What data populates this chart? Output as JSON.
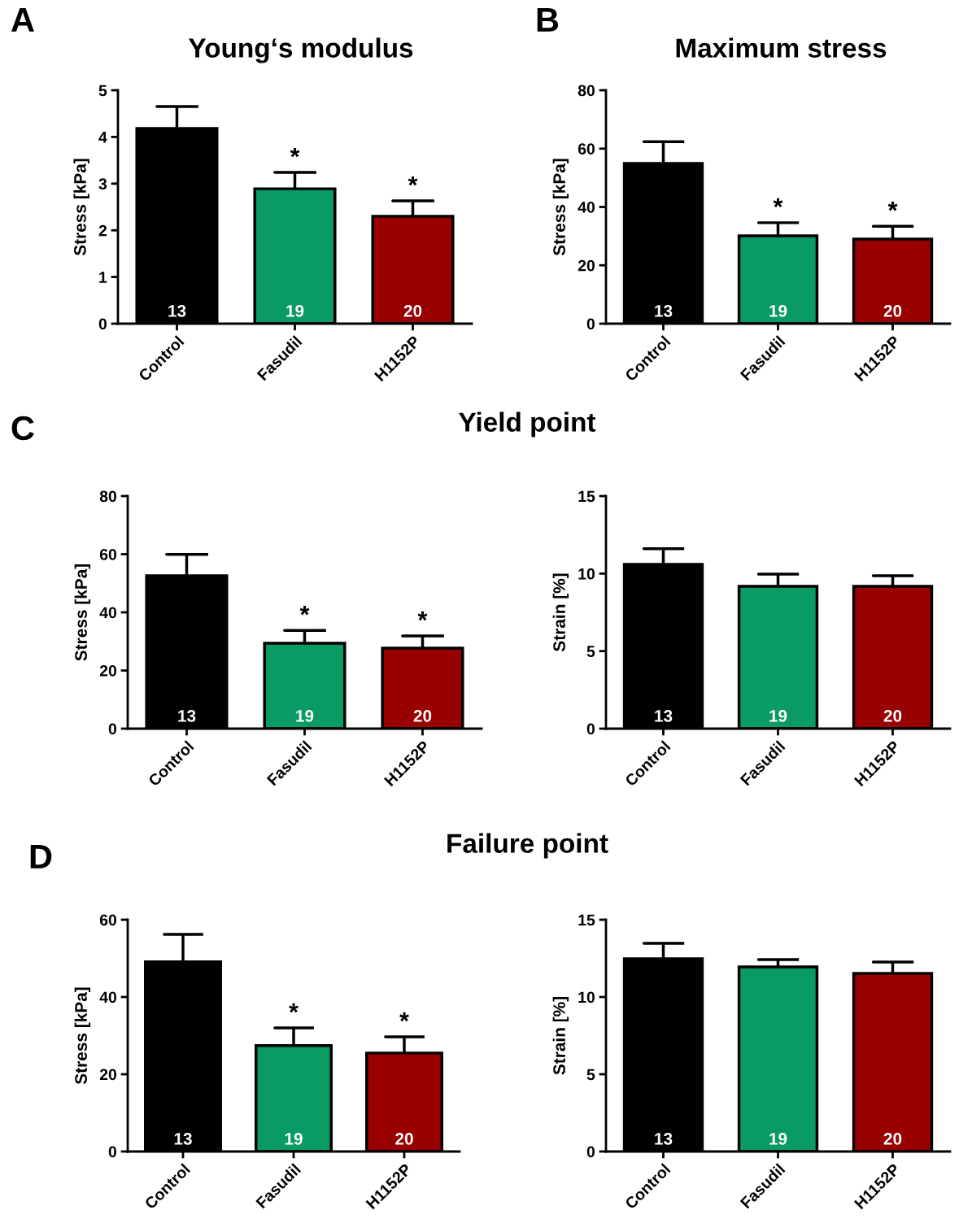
{
  "chart_data": [
    {
      "type": "bar",
      "title": "Young‘s modulus",
      "ylabel": "Stress [kPa]",
      "categories": [
        "Control",
        "Fasudil",
        "H1152P"
      ],
      "values": [
        4.18,
        2.89,
        2.3
      ],
      "errors": [
        0.47,
        0.35,
        0.33
      ],
      "colors": [
        "#000000",
        "#0a9a64",
        "#990000"
      ],
      "ylim": [
        0,
        5
      ],
      "yticks": [
        0,
        1,
        2,
        3,
        4,
        5
      ],
      "grid": false,
      "legend": false,
      "annotations": [
        "A",
        {
          "text": "13",
          "x": "Control",
          "y": 0
        },
        {
          "text": "19",
          "x": "Fasudil",
          "y": 0
        },
        {
          "text": "20",
          "x": "H1152P",
          "y": 0
        },
        {
          "text": "*",
          "x": "Fasudil",
          "y": 3.24
        },
        {
          "text": "*",
          "x": "H1152P",
          "y": 2.63
        }
      ]
    },
    {
      "type": "bar",
      "title": "Maximum stress",
      "ylabel": "Stress [kPa]",
      "categories": [
        "Control",
        "Fasudil",
        "H1152P"
      ],
      "values": [
        54.9,
        30.1,
        29.0
      ],
      "errors": [
        7.5,
        4.5,
        4.4
      ],
      "colors": [
        "#000000",
        "#0a9a64",
        "#990000"
      ],
      "ylim": [
        0,
        80
      ],
      "yticks": [
        0,
        20,
        40,
        60,
        80
      ],
      "grid": false,
      "legend": false,
      "annotations": [
        "B",
        {
          "text": "13",
          "x": "Control",
          "y": 0
        },
        {
          "text": "19",
          "x": "Fasudil",
          "y": 0
        },
        {
          "text": "20",
          "x": "H1152P",
          "y": 0
        },
        {
          "text": "*",
          "x": "Fasudil",
          "y": 34.6
        },
        {
          "text": "*",
          "x": "H1152P",
          "y": 33.4
        }
      ]
    },
    {
      "type": "bar",
      "title": "Yield point",
      "ylabel": "Stress [kPa]",
      "categories": [
        "Control",
        "Fasudil",
        "H1152P"
      ],
      "values": [
        52.6,
        29.4,
        27.7
      ],
      "errors": [
        7.3,
        4.4,
        4.2
      ],
      "colors": [
        "#000000",
        "#0a9a64",
        "#990000"
      ],
      "ylim": [
        0,
        80
      ],
      "yticks": [
        0,
        20,
        40,
        60,
        80
      ],
      "grid": false,
      "legend": false,
      "annotations": [
        "C",
        {
          "text": "13",
          "x": "Control",
          "y": 0
        },
        {
          "text": "19",
          "x": "Fasudil",
          "y": 0
        },
        {
          "text": "20",
          "x": "H1152P",
          "y": 0
        },
        {
          "text": "*",
          "x": "Fasudil",
          "y": 33.8
        },
        {
          "text": "*",
          "x": "H1152P",
          "y": 31.9
        }
      ]
    },
    {
      "type": "bar",
      "ylabel": "Strain [%]",
      "categories": [
        "Control",
        "Fasudil",
        "H1152P"
      ],
      "values": [
        10.6,
        9.18,
        9.18
      ],
      "errors": [
        1.0,
        0.79,
        0.68
      ],
      "colors": [
        "#000000",
        "#0a9a64",
        "#990000"
      ],
      "ylim": [
        0,
        15
      ],
      "yticks": [
        0,
        5,
        10,
        15
      ],
      "grid": false,
      "legend": false,
      "annotations": [
        {
          "text": "13",
          "x": "Control",
          "y": 0
        },
        {
          "text": "19",
          "x": "Fasudil",
          "y": 0
        },
        {
          "text": "20",
          "x": "H1152P",
          "y": 0
        }
      ]
    },
    {
      "type": "bar",
      "title": "Failure point",
      "ylabel": "Stress [kPa]",
      "categories": [
        "Control",
        "Fasudil",
        "H1152P"
      ],
      "values": [
        49.1,
        27.4,
        25.5
      ],
      "errors": [
        7.1,
        4.6,
        4.2
      ],
      "colors": [
        "#000000",
        "#0a9a64",
        "#990000"
      ],
      "ylim": [
        0,
        60
      ],
      "yticks": [
        0,
        20,
        40,
        60
      ],
      "grid": false,
      "legend": false,
      "annotations": [
        "D",
        {
          "text": "13",
          "x": "Control",
          "y": 0
        },
        {
          "text": "19",
          "x": "Fasudil",
          "y": 0
        },
        {
          "text": "20",
          "x": "H1152P",
          "y": 0
        },
        {
          "text": "*",
          "x": "Fasudil",
          "y": 32.0
        },
        {
          "text": "*",
          "x": "H1152P",
          "y": 29.7
        }
      ]
    },
    {
      "type": "bar",
      "ylabel": "Strain [%]",
      "categories": [
        "Control",
        "Fasudil",
        "H1152P"
      ],
      "values": [
        12.47,
        11.95,
        11.53
      ],
      "errors": [
        1.0,
        0.47,
        0.73
      ],
      "colors": [
        "#000000",
        "#0a9a64",
        "#990000"
      ],
      "ylim": [
        0,
        15
      ],
      "yticks": [
        0,
        5,
        10,
        15
      ],
      "grid": false,
      "legend": false,
      "annotations": [
        {
          "text": "13",
          "x": "Control",
          "y": 0
        },
        {
          "text": "19",
          "x": "Fasudil",
          "y": 0
        },
        {
          "text": "20",
          "x": "H1152P",
          "y": 0
        }
      ]
    }
  ]
}
